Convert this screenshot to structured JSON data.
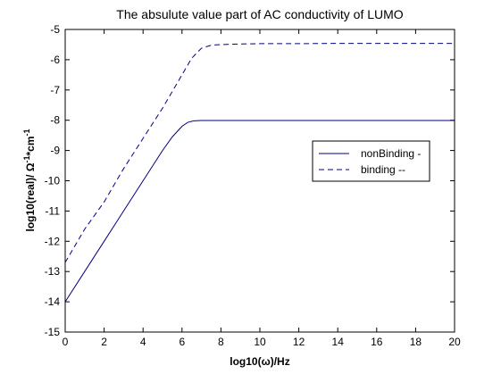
{
  "chart_data": {
    "type": "line",
    "title": "The absulute value part of AC conductivity of LUMO",
    "xlabel": "log10(ω)/Hz",
    "ylabel": "log10(real)/ Ω^-1*cm^-1",
    "xlim": [
      0,
      20
    ],
    "ylim": [
      -15,
      -5
    ],
    "xticks": [
      0,
      2,
      4,
      6,
      8,
      10,
      12,
      14,
      16,
      18,
      20
    ],
    "xtick_labels": [
      "0",
      "2",
      "4",
      "6",
      "8",
      "10",
      "12",
      "14",
      "16",
      "18",
      "20"
    ],
    "yticks": [
      -15,
      -14,
      -13,
      -12,
      -11,
      -10,
      -9,
      -8,
      -7,
      -6,
      -5
    ],
    "ytick_labels": [
      "-15",
      "-14",
      "-13",
      "-12",
      "-11",
      "-10",
      "-9",
      "-8",
      "-7",
      "-6",
      "-5"
    ],
    "grid": false,
    "legend_position": "right",
    "series": [
      {
        "name": "nonBinding -",
        "style": "solid",
        "color": "#000080",
        "x": [
          0,
          1,
          2,
          3,
          4,
          5,
          5.5,
          6,
          6.3,
          6.6,
          7,
          8,
          10,
          12,
          14,
          16,
          18,
          20
        ],
        "y": [
          -14.0,
          -13.0,
          -12.0,
          -11.0,
          -10.0,
          -9.0,
          -8.55,
          -8.2,
          -8.07,
          -8.02,
          -8.01,
          -8.01,
          -8.01,
          -8.01,
          -8.01,
          -8.01,
          -8.01,
          -8.01
        ]
      },
      {
        "name": "binding --",
        "style": "dashed",
        "color": "#000080",
        "x": [
          0,
          1,
          2,
          3,
          4,
          5,
          6,
          6.5,
          7,
          7.5,
          8,
          9,
          10,
          12,
          14,
          16,
          18,
          20
        ],
        "y": [
          -12.7,
          -11.6,
          -10.7,
          -9.6,
          -8.6,
          -7.6,
          -6.5,
          -5.95,
          -5.62,
          -5.52,
          -5.5,
          -5.48,
          -5.47,
          -5.47,
          -5.46,
          -5.46,
          -5.46,
          -5.46
        ]
      }
    ]
  }
}
